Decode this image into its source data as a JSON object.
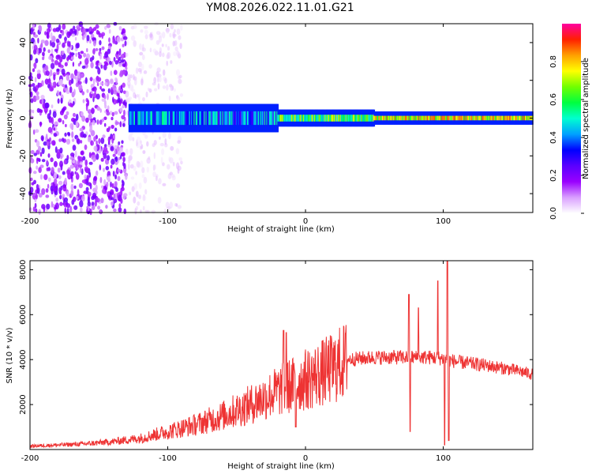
{
  "title": "YM08.2026.022.11.01.G21",
  "chart_data": [
    {
      "type": "heatmap",
      "name": "spectrogram",
      "xlabel": "Height of straight line (km)",
      "ylabel": "Frequency (Hz)",
      "xlim": [
        -200,
        165
      ],
      "ylim": [
        -50,
        50
      ],
      "xticks": [
        -200,
        -100,
        0,
        100
      ],
      "yticks": [
        -40,
        -20,
        0,
        20,
        40
      ],
      "colorbar": {
        "label": "Normalized spectral amplitude",
        "range": [
          0,
          1
        ],
        "ticks": [
          0.0,
          0.2,
          0.4,
          0.6,
          0.8
        ],
        "colors": [
          "#ffffff",
          "#d9a0ff",
          "#9a00ff",
          "#5a00ff",
          "#0000ff",
          "#00a0ff",
          "#00ffd0",
          "#00ff40",
          "#70ff00",
          "#ffff00",
          "#ffa000",
          "#ff2000",
          "#ff00a0"
        ]
      },
      "features": [
        {
          "region": "noise",
          "x_range": [
            -200,
            -130
          ],
          "freq_range": [
            -50,
            50
          ],
          "amplitude": 0.15
        },
        {
          "region": "noise-tail",
          "x_range": [
            -130,
            -90
          ],
          "freq_range": [
            -50,
            50
          ],
          "amplitude": 0.05
        },
        {
          "region": "signal-band",
          "x_range": [
            -128,
            -20
          ],
          "freq_range": [
            -6,
            6
          ],
          "amplitude": 0.4
        },
        {
          "region": "signal-band",
          "x_range": [
            -20,
            50
          ],
          "freq_range": [
            -3,
            3
          ],
          "amplitude": 0.6
        },
        {
          "region": "signal-band",
          "x_range": [
            50,
            165
          ],
          "freq_range": [
            -2,
            2
          ],
          "amplitude": 0.75
        }
      ]
    },
    {
      "type": "line",
      "name": "snr",
      "color": "#ee3333",
      "xlabel": "Height of straight line (km)",
      "ylabel": "SNR (10 * v/v)",
      "xlim": [
        -200,
        165
      ],
      "ylim": [
        0,
        8400
      ],
      "xticks": [
        -200,
        -100,
        0,
        100
      ],
      "yticks": [
        2000,
        4000,
        6000,
        8000
      ],
      "envelope": {
        "x": [
          -200,
          -180,
          -160,
          -140,
          -120,
          -100,
          -80,
          -60,
          -40,
          -20,
          0,
          20,
          30,
          50,
          70,
          90,
          100,
          110,
          130,
          150,
          165
        ],
        "y": [
          150,
          200,
          250,
          350,
          500,
          800,
          1100,
          1500,
          2000,
          2600,
          3100,
          3600,
          4000,
          4100,
          4100,
          4100,
          4050,
          3900,
          3750,
          3550,
          3350
        ]
      },
      "spikes": [
        {
          "x": -16,
          "y": 5300
        },
        {
          "x": -14,
          "y": 5200
        },
        {
          "x": -7,
          "y": 1000
        },
        {
          "x": 75,
          "y": 6900
        },
        {
          "x": 76,
          "y": 800
        },
        {
          "x": 82,
          "y": 6300
        },
        {
          "x": 96,
          "y": 7500
        },
        {
          "x": 101,
          "y": 200
        },
        {
          "x": 103,
          "y": 8400
        },
        {
          "x": 104,
          "y": 400
        }
      ]
    }
  ]
}
